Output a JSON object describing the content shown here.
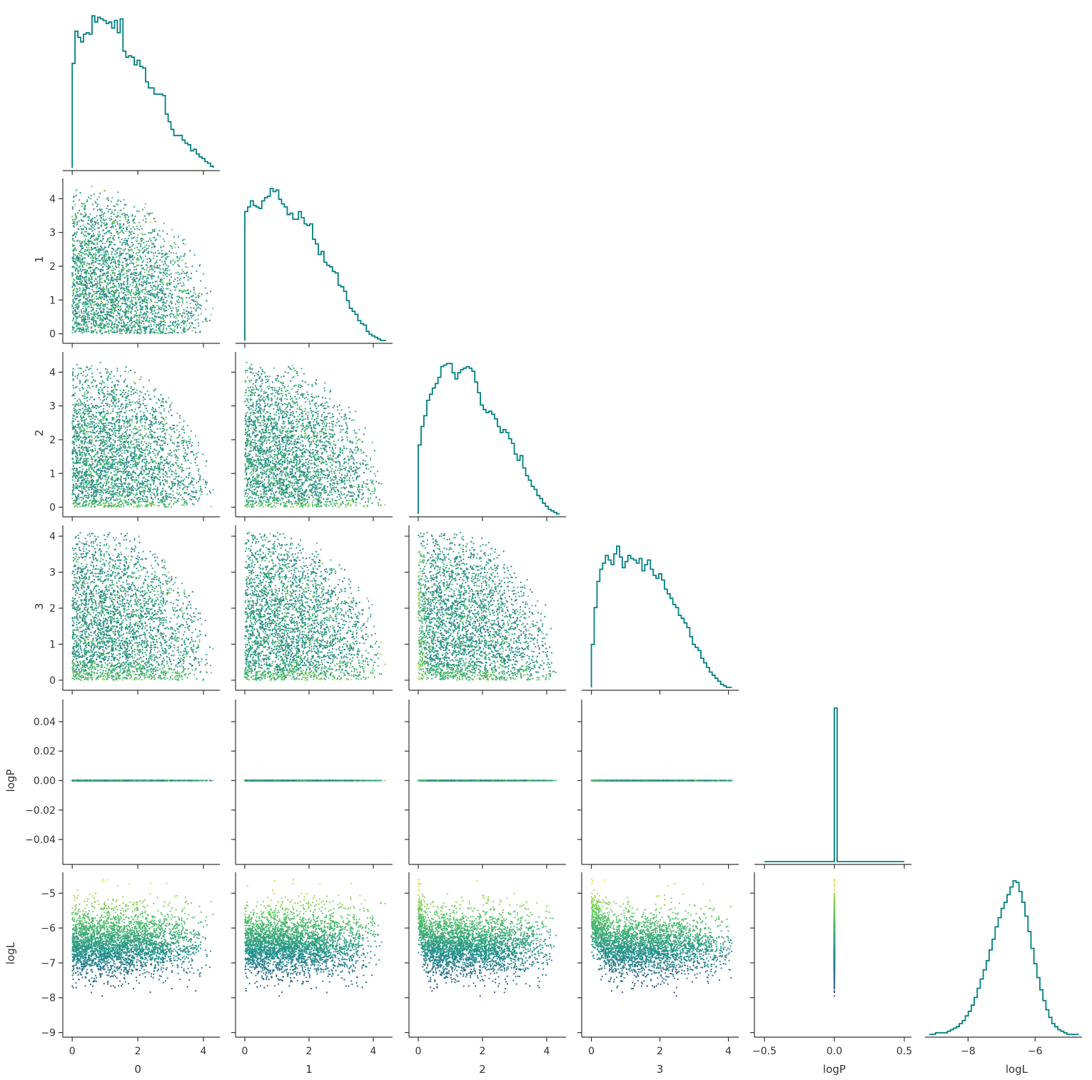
{
  "chart_data": {
    "type": "scatter",
    "kind": "corner-pairplot",
    "variables": [
      "0",
      "1",
      "2",
      "3",
      "logP",
      "logL"
    ],
    "color_by": "logL",
    "colormap": "viridis",
    "colormap_stops": [
      "#440154",
      "#3b528b",
      "#21918c",
      "#5ec962",
      "#fde725"
    ],
    "hist_color": "#008080",
    "spine_color": "#333333",
    "grid": false,
    "legend": "none",
    "ranges": {
      "0": [
        -0.2,
        4.5
      ],
      "1": [
        -0.2,
        4.6
      ],
      "2": [
        -0.2,
        4.6
      ],
      "3": [
        -0.2,
        4.3
      ],
      "logP": [
        -0.055,
        0.055
      ],
      "logL": [
        -9.05,
        -4.4
      ]
    },
    "axis_ticks": {
      "0": [
        0,
        2,
        4
      ],
      "1": [
        0,
        2,
        4
      ],
      "2": [
        0,
        2,
        4
      ],
      "3": [
        0,
        2,
        4
      ],
      "logP_x": [
        -0.5,
        0.0,
        0.5
      ],
      "logL_x": [
        -8,
        -6
      ]
    },
    "row_tick_labels": {
      "1": [
        "0",
        "1",
        "2",
        "3",
        "4"
      ],
      "2": [
        "0",
        "1",
        "2",
        "3",
        "4"
      ],
      "3": [
        "0",
        "1",
        "2",
        "3",
        "4"
      ],
      "logP": [
        "−0.04",
        "−0.02",
        "0.00",
        "0.02",
        "0.04"
      ],
      "logL": [
        "−9",
        "−8",
        "−7",
        "−6",
        "−5"
      ]
    },
    "col_tick_labels": {
      "0": [
        "0",
        "2",
        "4"
      ],
      "1": [
        "0",
        "2",
        "4"
      ],
      "2": [
        "0",
        "2",
        "4"
      ],
      "3": [
        "0",
        "2",
        "4"
      ],
      "logP": [
        "−0.5",
        "0.0",
        "0.5"
      ],
      "logL": [
        "−8",
        "−6"
      ]
    },
    "row_labels": [
      "",
      "1",
      "2",
      "3",
      "logP",
      "logL"
    ],
    "column_labels": [
      "0",
      "1",
      "2",
      "3",
      "logP",
      "logL"
    ],
    "histograms": {
      "0": {
        "range": [
          0,
          4.3
        ],
        "bins": 50,
        "counts": [
          0.68,
          0.89,
          0.85,
          0.82,
          0.87,
          0.88,
          0.87,
          0.99,
          0.95,
          0.98,
          0.97,
          0.96,
          0.94,
          0.95,
          0.91,
          0.96,
          0.88,
          0.97,
          0.76,
          0.72,
          0.73,
          0.72,
          0.67,
          0.7,
          0.66,
          0.65,
          0.56,
          0.52,
          0.52,
          0.48,
          0.48,
          0.48,
          0.47,
          0.35,
          0.3,
          0.25,
          0.21,
          0.21,
          0.21,
          0.18,
          0.16,
          0.15,
          0.11,
          0.12,
          0.09,
          0.07,
          0.06,
          0.04,
          0.03,
          0.01
        ]
      },
      "1": {
        "range": [
          0,
          4.4
        ],
        "bins": 50,
        "counts": [
          0.84,
          0.87,
          0.91,
          0.88,
          0.87,
          0.86,
          0.91,
          0.93,
          0.94,
          0.99,
          0.97,
          0.98,
          0.92,
          0.89,
          0.87,
          0.82,
          0.83,
          0.79,
          0.79,
          0.84,
          0.8,
          0.76,
          0.75,
          0.76,
          0.66,
          0.63,
          0.56,
          0.58,
          0.51,
          0.49,
          0.48,
          0.45,
          0.44,
          0.36,
          0.35,
          0.32,
          0.26,
          0.21,
          0.19,
          0.17,
          0.13,
          0.11,
          0.1,
          0.06,
          0.04,
          0.03,
          0.02,
          0.01,
          0.0,
          0.0
        ]
      },
      "2": {
        "range": [
          0,
          4.4
        ],
        "bins": 50,
        "counts": [
          0.45,
          0.57,
          0.64,
          0.74,
          0.78,
          0.82,
          0.85,
          0.89,
          0.96,
          0.97,
          0.98,
          0.98,
          0.92,
          0.88,
          0.92,
          0.94,
          0.95,
          0.96,
          0.95,
          0.93,
          0.86,
          0.79,
          0.71,
          0.68,
          0.66,
          0.67,
          0.65,
          0.62,
          0.57,
          0.53,
          0.55,
          0.53,
          0.49,
          0.46,
          0.39,
          0.35,
          0.38,
          0.3,
          0.25,
          0.22,
          0.18,
          0.16,
          0.12,
          0.1,
          0.07,
          0.05,
          0.03,
          0.02,
          0.01,
          0.0
        ]
      },
      "3": {
        "range": [
          0,
          4.1
        ],
        "bins": 50,
        "counts": [
          0.28,
          0.52,
          0.69,
          0.77,
          0.81,
          0.86,
          0.83,
          0.8,
          0.87,
          0.92,
          0.85,
          0.78,
          0.82,
          0.86,
          0.84,
          0.83,
          0.81,
          0.84,
          0.76,
          0.8,
          0.83,
          0.77,
          0.73,
          0.71,
          0.74,
          0.7,
          0.64,
          0.61,
          0.58,
          0.54,
          0.52,
          0.47,
          0.45,
          0.42,
          0.39,
          0.33,
          0.28,
          0.26,
          0.24,
          0.19,
          0.16,
          0.13,
          0.1,
          0.08,
          0.06,
          0.04,
          0.02,
          0.01,
          0.0,
          0.0
        ]
      },
      "logP": {
        "range": [
          -0.5,
          0.5
        ],
        "bins": 50,
        "counts": [
          0,
          0,
          0,
          0,
          0,
          0,
          0,
          0,
          0,
          0,
          0,
          0,
          0,
          0,
          0,
          0,
          0,
          0,
          0,
          0,
          0,
          0,
          0,
          0,
          0,
          1.0,
          0,
          0,
          0,
          0,
          0,
          0,
          0,
          0,
          0,
          0,
          0,
          0,
          0,
          0,
          0,
          0,
          0,
          0,
          0,
          0,
          0,
          0,
          0,
          0
        ]
      },
      "logL": {
        "range": [
          -9.0,
          -4.5
        ],
        "bins": 50,
        "counts": [
          0.0,
          0.0,
          0.01,
          0.01,
          0.01,
          0.01,
          0.02,
          0.03,
          0.04,
          0.05,
          0.07,
          0.09,
          0.12,
          0.15,
          0.19,
          0.24,
          0.3,
          0.36,
          0.42,
          0.48,
          0.55,
          0.62,
          0.7,
          0.76,
          0.82,
          0.86,
          0.91,
          0.96,
          1.0,
          0.99,
          0.93,
          0.86,
          0.77,
          0.67,
          0.56,
          0.46,
          0.37,
          0.29,
          0.22,
          0.16,
          0.11,
          0.07,
          0.05,
          0.03,
          0.02,
          0.01,
          0.0,
          0.0,
          0.0,
          0.0
        ]
      }
    },
    "scatter_points_per_panel": 3000
  }
}
